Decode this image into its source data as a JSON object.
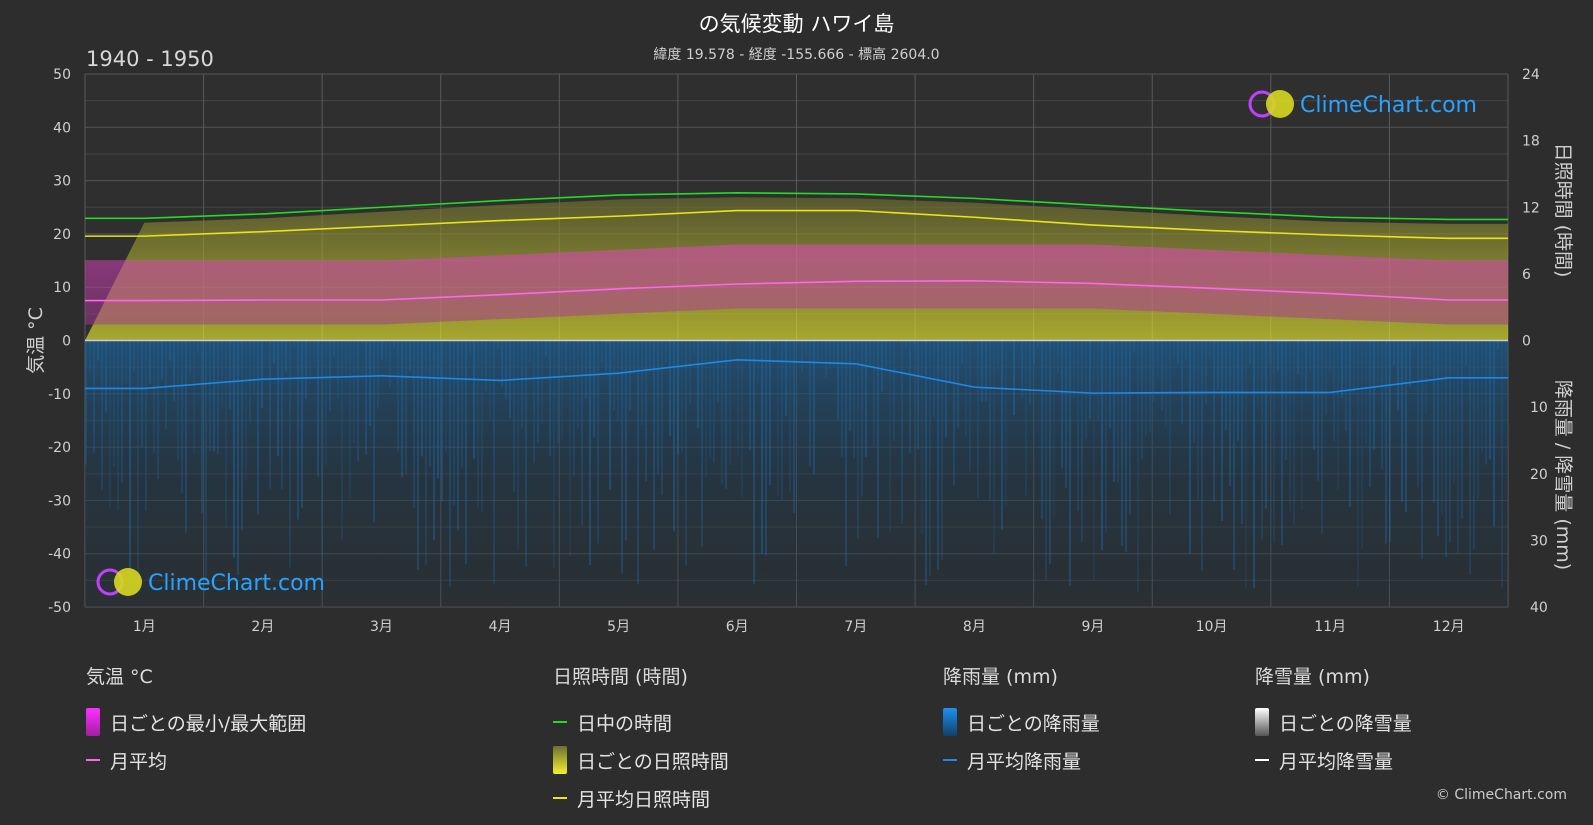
{
  "header": {
    "title": "の気候変動 ハワイ島",
    "subtitle": "緯度 19.578 - 経度 -155.666 - 標高 2604.0",
    "period": "1940 - 1950"
  },
  "brand": {
    "logo_text": "ClimeChart.com",
    "copyright": "© ClimeChart.com"
  },
  "colors": {
    "background": "#2d2d2d",
    "daylight": "#22dd22",
    "sunshine_mean": "#e6e61a",
    "sunshine_band": "#8f8f2a",
    "temp_band": "#d94fa6",
    "temp_mean": "#ff66ee",
    "rain": "#1e88e5",
    "snow": "#ffffff"
  },
  "chart_data": {
    "type": "line",
    "x_categories": [
      "1月",
      "2月",
      "3月",
      "4月",
      "5月",
      "6月",
      "7月",
      "8月",
      "9月",
      "10月",
      "11月",
      "12月"
    ],
    "left_axis": {
      "label": "気温 °C",
      "range": [
        -50,
        50
      ],
      "ticks": [
        "50",
        "40",
        "30",
        "20",
        "10",
        "0",
        "-10",
        "-20",
        "-30",
        "-40",
        "-50"
      ]
    },
    "right_axis_top": {
      "label": "日照時間 (時間)",
      "range": [
        0,
        24
      ],
      "ticks": [
        "24",
        "18",
        "12",
        "6",
        "0"
      ]
    },
    "right_axis_bottom": {
      "label": "降雨量 / 降雪量 (mm)",
      "range": [
        0,
        40
      ],
      "ticks": [
        "0",
        "10",
        "20",
        "30",
        "40"
      ]
    },
    "grid": true,
    "series": [
      {
        "name": "日中の時間",
        "unit": "時間",
        "values": [
          11.0,
          11.4,
          12.0,
          12.6,
          13.1,
          13.3,
          13.2,
          12.8,
          12.2,
          11.6,
          11.1,
          10.9
        ]
      },
      {
        "name": "月平均日照時間",
        "unit": "時間",
        "values": [
          9.4,
          9.8,
          10.3,
          10.8,
          11.2,
          11.7,
          11.7,
          11.1,
          10.4,
          9.9,
          9.5,
          9.2
        ]
      },
      {
        "name": "月平均",
        "unit": "°C",
        "values": [
          7.5,
          7.6,
          7.6,
          8.6,
          9.7,
          10.6,
          11.1,
          11.2,
          10.7,
          9.8,
          8.8,
          7.6
        ]
      },
      {
        "name": "月平均降雨量",
        "unit": "mm",
        "values": [
          7.2,
          5.8,
          5.3,
          6.0,
          4.9,
          2.9,
          3.5,
          7.0,
          7.9,
          7.8,
          7.8,
          5.6
        ]
      },
      {
        "name": "日ごとの最小/最大範囲",
        "unit": "°C",
        "min": [
          3,
          3,
          3,
          4,
          5,
          6,
          6,
          6,
          6,
          5,
          4,
          3
        ],
        "max": [
          15,
          15,
          15,
          16,
          17,
          18,
          18,
          18,
          18,
          17,
          16,
          15
        ]
      }
    ]
  },
  "legend": {
    "temp": {
      "title": "気温 °C",
      "range": "日ごとの最小/最大範囲",
      "mean": "月平均"
    },
    "sun": {
      "title": "日照時間 (時間)",
      "daylight": "日中の時間",
      "daily": "日ごとの日照時間",
      "mean": "月平均日照時間"
    },
    "rain": {
      "title": "降雨量 (mm)",
      "daily": "日ごとの降雨量",
      "mean": "月平均降雨量"
    },
    "snow": {
      "title": "降雪量 (mm)",
      "daily": "日ごとの降雪量",
      "mean": "月平均降雪量"
    }
  }
}
